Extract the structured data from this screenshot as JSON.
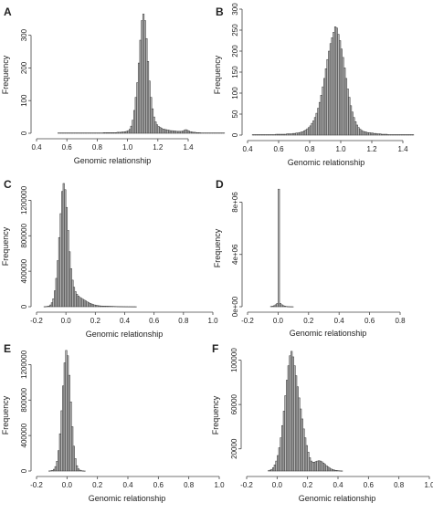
{
  "figure": {
    "panels": [
      {
        "letter": "A",
        "chart_data": {
          "type": "bar",
          "xlabel": "Genomic relationship",
          "ylabel": "Frequency",
          "xlim": [
            0.4,
            1.4
          ],
          "ylim": [
            0,
            380
          ],
          "xticks": [
            "0.4",
            "0.6",
            "0.8",
            "1.0",
            "1.2",
            "1.4"
          ],
          "yticks": [
            "0",
            "100",
            "200",
            "300"
          ],
          "bin_start": 0.54,
          "bin_width": 0.01,
          "values": [
            1,
            1,
            1,
            1,
            1,
            1,
            1,
            1,
            1,
            1,
            1,
            1,
            1,
            1,
            1,
            1,
            1,
            1,
            1,
            1,
            1,
            1,
            1,
            1,
            1,
            1,
            1,
            1,
            1,
            1,
            2,
            2,
            2,
            2,
            2,
            2,
            2,
            2,
            2,
            3,
            3,
            3,
            4,
            4,
            5,
            6,
            8,
            12,
            22,
            40,
            70,
            110,
            155,
            215,
            285,
            345,
            365,
            345,
            290,
            220,
            160,
            110,
            75,
            50,
            35,
            26,
            21,
            18,
            15,
            13,
            12,
            11,
            10,
            9,
            8,
            8,
            7,
            7,
            6,
            6,
            6,
            6,
            7,
            9,
            11,
            9,
            7,
            5,
            4,
            3,
            3,
            2,
            2,
            2,
            1,
            1,
            1,
            1,
            1,
            1,
            1,
            1,
            1,
            1,
            1,
            1,
            1,
            1,
            1,
            1
          ]
        }
      },
      {
        "letter": "B",
        "chart_data": {
          "type": "bar",
          "xlabel": "Genomic relationship",
          "ylabel": "Frequency",
          "xlim": [
            0.4,
            1.4
          ],
          "ylim": [
            0,
            300
          ],
          "xticks": [
            "0.4",
            "0.6",
            "0.8",
            "1.0",
            "1.2",
            "1.4"
          ],
          "yticks": [
            "0",
            "50",
            "100",
            "150",
            "200",
            "250",
            "300"
          ],
          "bin_start": 0.43,
          "bin_width": 0.01,
          "values": [
            1,
            1,
            1,
            1,
            1,
            1,
            1,
            1,
            1,
            1,
            1,
            1,
            1,
            1,
            1,
            2,
            2,
            2,
            2,
            2,
            2,
            2,
            3,
            3,
            3,
            3,
            4,
            4,
            5,
            5,
            6,
            7,
            8,
            10,
            12,
            15,
            18,
            22,
            28,
            34,
            42,
            52,
            64,
            78,
            95,
            115,
            135,
            158,
            180,
            200,
            218,
            232,
            245,
            258,
            255,
            240,
            225,
            205,
            185,
            160,
            135,
            110,
            90,
            70,
            55,
            42,
            32,
            24,
            18,
            14,
            11,
            9,
            8,
            7,
            6,
            6,
            5,
            5,
            4,
            4,
            3,
            3,
            3,
            2,
            2,
            2,
            2,
            1,
            1,
            1,
            1,
            1,
            1,
            1,
            1,
            1,
            1,
            1,
            1,
            1,
            1,
            1,
            1,
            1
          ]
        }
      },
      {
        "letter": "C",
        "chart_data": {
          "type": "bar",
          "xlabel": "Genomic relationship",
          "ylabel": "Frequency",
          "xlim": [
            -0.2,
            1.0
          ],
          "ylim": [
            0,
            1400000
          ],
          "xticks": [
            "-0.2",
            "0.0",
            "0.2",
            "0.4",
            "0.6",
            "0.8",
            "1.0"
          ],
          "yticks": [
            "0",
            "400000",
            "800000",
            "1200000"
          ],
          "bin_start": -0.15,
          "bin_width": 0.01,
          "values": [
            1000,
            2000,
            4000,
            8000,
            20000,
            45000,
            90000,
            180000,
            320000,
            520000,
            780000,
            1050000,
            1300000,
            1390000,
            1320000,
            1120000,
            860000,
            620000,
            430000,
            300000,
            220000,
            170000,
            140000,
            120000,
            105000,
            95000,
            85000,
            75000,
            65000,
            55000,
            46000,
            38000,
            31000,
            25000,
            20000,
            16000,
            13000,
            11000,
            9000,
            8000,
            7000,
            6500,
            6000,
            5500,
            5000,
            4500,
            4000,
            3500,
            3000,
            2500,
            2000,
            1800,
            1500,
            1200,
            1000,
            800,
            600,
            500,
            400,
            300,
            200,
            150,
            100
          ]
        }
      },
      {
        "letter": "D",
        "chart_data": {
          "type": "bar",
          "xlabel": "Genomic relationship",
          "ylabel": "Frequency",
          "xlim": [
            -0.2,
            0.8
          ],
          "ylim": [
            0,
            9500000
          ],
          "xticks": [
            "-0.2",
            "0.0",
            "0.2",
            "0.4",
            "0.6",
            "0.8"
          ],
          "yticks": [
            "0e+00",
            "4e+06",
            "8e+06"
          ],
          "bin_start": -0.05,
          "bin_width": 0.01,
          "values": [
            20000,
            40000,
            80000,
            150000,
            250000,
            9000000,
            250000,
            150000,
            80000,
            40000,
            20000,
            10000,
            5000,
            2000,
            1000
          ]
        }
      },
      {
        "letter": "E",
        "chart_data": {
          "type": "bar",
          "xlabel": "Genomic relationship",
          "ylabel": "Frequency",
          "xlim": [
            -0.2,
            1.0
          ],
          "ylim": [
            0,
            1400000
          ],
          "xticks": [
            "-0.2",
            "0.0",
            "0.2",
            "0.4",
            "0.6",
            "0.8",
            "1.0"
          ],
          "yticks": [
            "0",
            "400000",
            "800000",
            "1200000"
          ],
          "bin_start": -0.12,
          "bin_width": 0.01,
          "values": [
            1000,
            3000,
            8000,
            20000,
            50000,
            110000,
            230000,
            420000,
            680000,
            960000,
            1220000,
            1360000,
            1300000,
            1080000,
            780000,
            500000,
            280000,
            140000,
            60000,
            25000,
            10000,
            4000,
            1500,
            500
          ]
        }
      },
      {
        "letter": "F",
        "chart_data": {
          "type": "bar",
          "xlabel": "Genomic relationship",
          "ylabel": "Frequency",
          "xlim": [
            -0.2,
            1.0
          ],
          "ylim": [
            0,
            112000
          ],
          "xticks": [
            "-0.2",
            "0.0",
            "0.2",
            "0.4",
            "0.6",
            "0.8",
            "1.0"
          ],
          "yticks": [
            "20000",
            "60000",
            "100000"
          ],
          "bin_start": -0.06,
          "bin_width": 0.01,
          "values": [
            300,
            800,
            1500,
            3000,
            5500,
            9000,
            14000,
            21000,
            30000,
            41000,
            54000,
            68000,
            82000,
            95000,
            104000,
            108000,
            103000,
            95000,
            86000,
            76000,
            66000,
            56000,
            47000,
            38000,
            30000,
            23000,
            17000,
            12000,
            9000,
            8000,
            8000,
            8500,
            9000,
            9300,
            9000,
            8300,
            7200,
            6000,
            4800,
            3700,
            2700,
            1900,
            1300,
            900,
            600,
            400,
            250,
            150,
            100
          ]
        }
      }
    ]
  }
}
